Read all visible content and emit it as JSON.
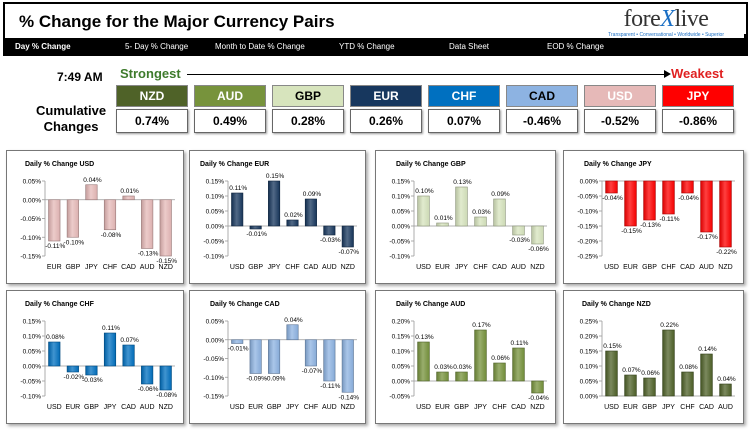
{
  "header": {
    "title": "% Change for the Major Currency Pairs",
    "logo_brand_a": "fore",
    "logo_brand_x": "X",
    "logo_brand_b": "live",
    "logo_tagline": "Transparent • Conversational • Worldwide • Superior"
  },
  "tabs": [
    {
      "label": "Day % Change"
    },
    {
      "label": "5- Day % Change"
    },
    {
      "label": "Month to Date % Change"
    },
    {
      "label": "YTD % Change"
    },
    {
      "label": "Data Sheet"
    },
    {
      "label": "EOD % Change"
    }
  ],
  "summary": {
    "time": "7:49 AM",
    "cumulative_line1": "Cumulative",
    "cumulative_line2": "Changes",
    "strongest_label": "Strongest",
    "weakest_label": "Weakest",
    "ranking": [
      {
        "currency": "NZD",
        "value": "0.74%",
        "bg": "#4f6228",
        "fg": "#ffffff"
      },
      {
        "currency": "AUD",
        "value": "0.49%",
        "bg": "#77933c",
        "fg": "#ffffff"
      },
      {
        "currency": "GBP",
        "value": "0.28%",
        "bg": "#d7e4bd",
        "fg": "#000000"
      },
      {
        "currency": "EUR",
        "value": "0.26%",
        "bg": "#17375e",
        "fg": "#ffffff"
      },
      {
        "currency": "CHF",
        "value": "0.07%",
        "bg": "#0070c0",
        "fg": "#ffffff"
      },
      {
        "currency": "CAD",
        "value": "-0.46%",
        "bg": "#8db3e2",
        "fg": "#000000"
      },
      {
        "currency": "USD",
        "value": "-0.52%",
        "bg": "#e6b9b8",
        "fg": "#ffffff"
      },
      {
        "currency": "JPY",
        "value": "-0.86%",
        "bg": "#ff0000",
        "fg": "#ffffff"
      }
    ]
  },
  "chart_data": [
    {
      "type": "bar",
      "title": "Daily % Change USD",
      "categories": [
        "EUR",
        "GBP",
        "JPY",
        "CHF",
        "CAD",
        "AUD",
        "NZD"
      ],
      "values": [
        -0.11,
        -0.1,
        0.04,
        -0.08,
        0.01,
        -0.13,
        -0.15
      ],
      "labels": [
        "-0.11%",
        "-0.10%",
        "0.04%",
        "-0.08%",
        "0.01%",
        "-0.13%",
        "-0.15%"
      ],
      "ylim": [
        -0.15,
        0.05
      ],
      "yticks": [
        0.05,
        0.0,
        -0.05,
        -0.1,
        -0.15
      ],
      "ytick_labels": [
        "0.05%",
        "0.00%",
        "-0.05%",
        "-0.10%",
        "-0.15%"
      ],
      "color": "#e6b9b8"
    },
    {
      "type": "bar",
      "title": "Daily % Change EUR",
      "categories": [
        "USD",
        "GBP",
        "JPY",
        "CHF",
        "CAD",
        "AUD",
        "NZD"
      ],
      "values": [
        0.11,
        -0.01,
        0.15,
        0.02,
        0.09,
        -0.03,
        -0.07
      ],
      "labels": [
        "0.11%",
        "-0.01%",
        "0.15%",
        "0.02%",
        "0.09%",
        "-0.03%",
        "-0.07%"
      ],
      "ylim": [
        -0.1,
        0.15
      ],
      "yticks": [
        0.15,
        0.1,
        0.05,
        0.0,
        -0.05,
        -0.1
      ],
      "ytick_labels": [
        "0.15%",
        "0.10%",
        "0.05%",
        "0.00%",
        "-0.05%",
        "-0.10%"
      ],
      "color": "#17375e"
    },
    {
      "type": "bar",
      "title": "Daily % Change GBP",
      "categories": [
        "USD",
        "EUR",
        "JPY",
        "CHF",
        "CAD",
        "AUD",
        "NZD"
      ],
      "values": [
        0.1,
        0.01,
        0.13,
        0.03,
        0.09,
        -0.03,
        -0.06
      ],
      "labels": [
        "0.10%",
        "0.01%",
        "0.13%",
        "0.03%",
        "0.09%",
        "-0.03%",
        "-0.06%"
      ],
      "ylim": [
        -0.1,
        0.15
      ],
      "yticks": [
        0.15,
        0.1,
        0.05,
        0.0,
        -0.05,
        -0.1
      ],
      "ytick_labels": [
        "0.15%",
        "0.10%",
        "0.05%",
        "0.00%",
        "-0.05%",
        "-0.10%"
      ],
      "color": "#d7e4bd"
    },
    {
      "type": "bar",
      "title": "Daily % Change JPY",
      "categories": [
        "USD",
        "EUR",
        "GBP",
        "CHF",
        "CAD",
        "AUD",
        "NZD"
      ],
      "values": [
        -0.04,
        -0.15,
        -0.13,
        -0.11,
        -0.04,
        -0.17,
        -0.22
      ],
      "labels": [
        "-0.04%",
        "-0.15%",
        "-0.13%",
        "-0.11%",
        "-0.04%",
        "-0.17%",
        "-0.22%"
      ],
      "ylim": [
        -0.25,
        0.0
      ],
      "yticks": [
        0.0,
        -0.05,
        -0.1,
        -0.15,
        -0.2,
        -0.25
      ],
      "ytick_labels": [
        "0.00%",
        "-0.05%",
        "-0.10%",
        "-0.15%",
        "-0.20%",
        "-0.25%"
      ],
      "color": "#ff0000"
    },
    {
      "type": "bar",
      "title": "Daily % Change CHF",
      "categories": [
        "USD",
        "EUR",
        "GBP",
        "JPY",
        "CAD",
        "AUD",
        "NZD"
      ],
      "values": [
        0.08,
        -0.02,
        -0.03,
        0.11,
        0.07,
        -0.06,
        -0.08
      ],
      "labels": [
        "0.08%",
        "-0.02%",
        "-0.03%",
        "0.11%",
        "0.07%",
        "-0.06%",
        "-0.08%"
      ],
      "ylim": [
        -0.1,
        0.15
      ],
      "yticks": [
        0.15,
        0.1,
        0.05,
        0.0,
        -0.05,
        -0.1
      ],
      "ytick_labels": [
        "0.15%",
        "0.10%",
        "0.05%",
        "0.00%",
        "-0.05%",
        "-0.10%"
      ],
      "color": "#0070c0"
    },
    {
      "type": "bar",
      "title": "Daily % Change CAD",
      "categories": [
        "USD",
        "EUR",
        "GBP",
        "JPY",
        "CHF",
        "AUD",
        "NZD"
      ],
      "values": [
        -0.01,
        -0.09,
        -0.09,
        0.04,
        -0.07,
        -0.11,
        -0.14
      ],
      "labels": [
        "-0.01%",
        "-0.09%",
        "-0.09%",
        "0.04%",
        "-0.07%",
        "-0.11%",
        "-0.14%"
      ],
      "ylim": [
        -0.15,
        0.05
      ],
      "yticks": [
        0.05,
        0.0,
        -0.05,
        -0.1,
        -0.15
      ],
      "ytick_labels": [
        "0.05%",
        "0.00%",
        "-0.05%",
        "-0.10%",
        "-0.15%"
      ],
      "color": "#8db3e2"
    },
    {
      "type": "bar",
      "title": "Daily % Change AUD",
      "categories": [
        "USD",
        "EUR",
        "GBP",
        "JPY",
        "CHF",
        "CAD",
        "NZD"
      ],
      "values": [
        0.13,
        0.03,
        0.03,
        0.17,
        0.06,
        0.11,
        -0.04
      ],
      "labels": [
        "0.13%",
        "0.03%",
        "0.03%",
        "0.17%",
        "0.06%",
        "0.11%",
        "-0.04%"
      ],
      "ylim": [
        -0.05,
        0.2
      ],
      "yticks": [
        0.2,
        0.15,
        0.1,
        0.05,
        0.0,
        -0.05
      ],
      "ytick_labels": [
        "0.20%",
        "0.15%",
        "0.10%",
        "0.05%",
        "0.00%",
        "-0.05%"
      ],
      "color": "#77933c"
    },
    {
      "type": "bar",
      "title": "Daily % Change NZD",
      "categories": [
        "USD",
        "EUR",
        "GBP",
        "JPY",
        "CHF",
        "CAD",
        "AUD"
      ],
      "values": [
        0.15,
        0.07,
        0.06,
        0.22,
        0.08,
        0.14,
        0.04
      ],
      "labels": [
        "0.15%",
        "0.07%",
        "0.06%",
        "0.22%",
        "0.08%",
        "0.14%",
        "0.04%"
      ],
      "ylim": [
        0.0,
        0.25
      ],
      "yticks": [
        0.25,
        0.2,
        0.15,
        0.1,
        0.05,
        0.0
      ],
      "ytick_labels": [
        "0.25%",
        "0.20%",
        "0.15%",
        "0.10%",
        "0.05%",
        "0.00%"
      ],
      "color": "#4f6228"
    }
  ]
}
